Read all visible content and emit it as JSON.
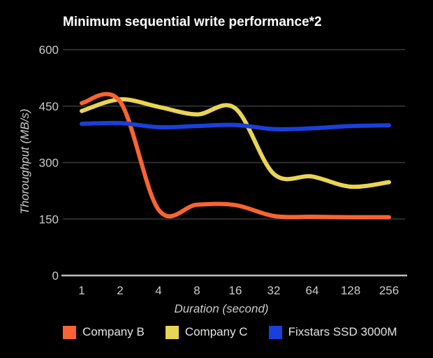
{
  "window": {
    "background": "#000000"
  },
  "chart_data": {
    "type": "line",
    "title": "Minimum sequential write performance*2",
    "xlabel": "Duration (second)",
    "ylabel": "Thoroughput (MB/s)",
    "x_scale": "log2",
    "categories": [
      1,
      2,
      4,
      8,
      16,
      32,
      64,
      128,
      256
    ],
    "y_ticks": [
      600,
      450,
      300,
      150,
      0
    ],
    "ylim": [
      0,
      600
    ],
    "grid": true,
    "legend_position": "bottom",
    "series": [
      {
        "name": "Company B",
        "color": "#f96431",
        "z": 2,
        "values": [
          458,
          462,
          175,
          188,
          187,
          158,
          156,
          155,
          155
        ]
      },
      {
        "name": "Company C",
        "color": "#e9d455",
        "z": 1,
        "values": [
          437,
          468,
          448,
          428,
          444,
          270,
          263,
          236,
          248
        ]
      },
      {
        "name": "Fixstars SSD 3000M",
        "color": "#1940d9",
        "z": 3,
        "values": [
          403,
          405,
          394,
          397,
          400,
          389,
          391,
          397,
          399
        ]
      }
    ],
    "palette": {
      "title_color": "#ffffff",
      "tick_color": "#cbcbcb",
      "grid_color": "#3a3a3a",
      "axis_color": "#bfbfbf",
      "legend_text_color": "#e4e4e4"
    }
  }
}
